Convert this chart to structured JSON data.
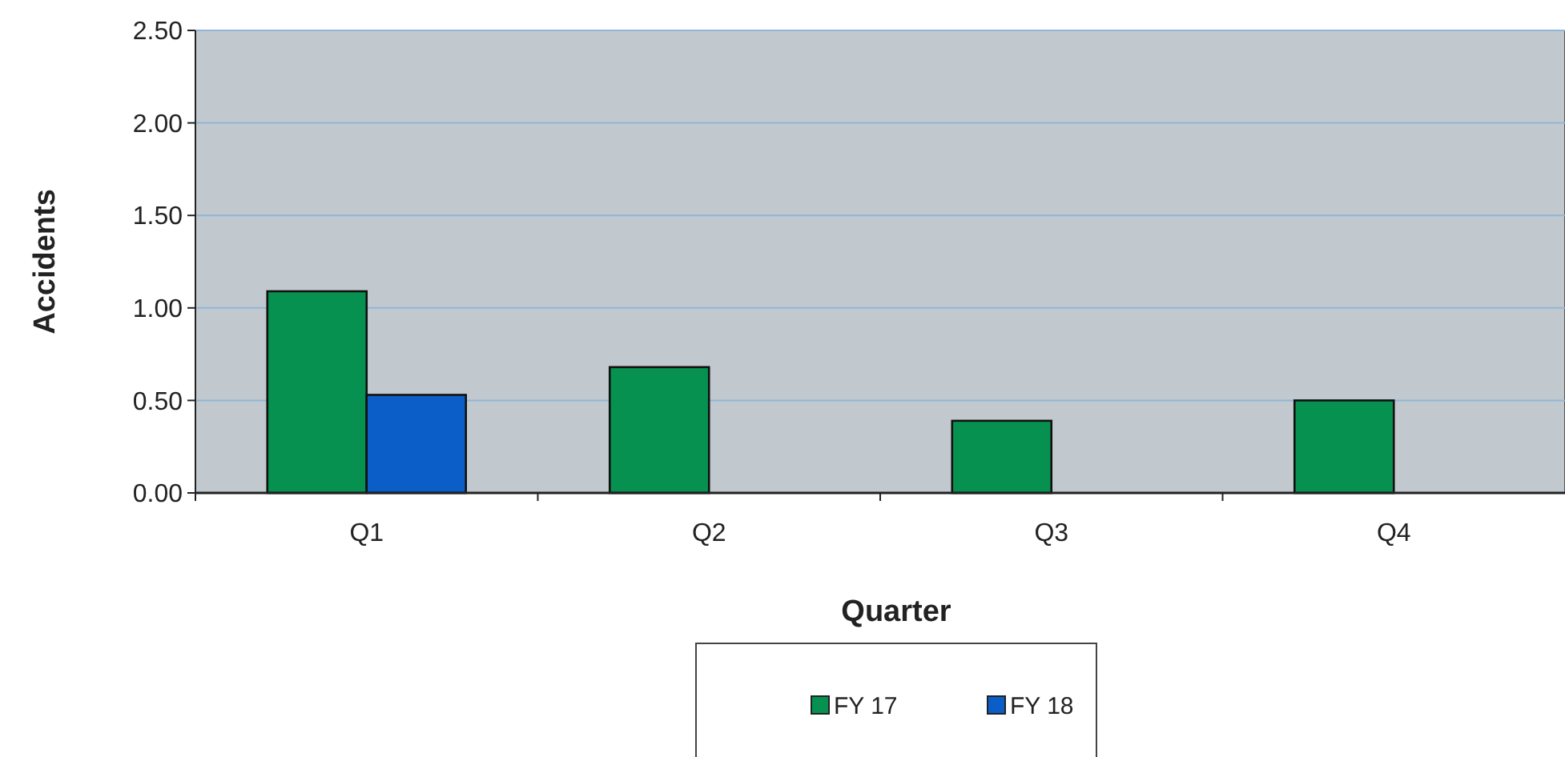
{
  "chart_data": {
    "type": "bar",
    "xlabel": "Quarter",
    "ylabel": "Accidents",
    "categories": [
      "Q1",
      "Q2",
      "Q3",
      "Q4"
    ],
    "series": [
      {
        "name": "FY 17",
        "color": "#079150",
        "values": [
          1.09,
          0.68,
          0.39,
          0.5
        ]
      },
      {
        "name": "FY 18",
        "color": "#0b5ec8",
        "values": [
          0.53,
          null,
          null,
          null
        ]
      }
    ],
    "ylim": [
      0,
      2.5
    ],
    "yticks": [
      {
        "value": 0,
        "label": "0.00"
      },
      {
        "value": 0.5,
        "label": "0.50"
      },
      {
        "value": 1,
        "label": "1.00"
      },
      {
        "value": 1.5,
        "label": "1.50"
      },
      {
        "value": 2,
        "label": "2.00"
      },
      {
        "value": 2.5,
        "label": "2.50"
      }
    ],
    "grid": "y",
    "legend": "bottom"
  }
}
